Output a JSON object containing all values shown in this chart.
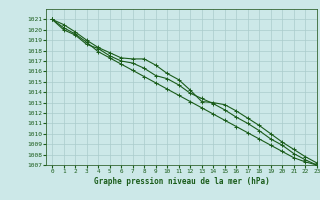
{
  "xlabel": "Graphe pression niveau de la mer (hPa)",
  "background_color": "#cce8e8",
  "grid_color": "#aacccc",
  "line_color": "#1a5c1a",
  "spine_color": "#336633",
  "xlim": [
    -0.5,
    23
  ],
  "ylim": [
    1007,
    1022
  ],
  "yticks": [
    1007,
    1008,
    1009,
    1010,
    1011,
    1012,
    1013,
    1014,
    1015,
    1016,
    1017,
    1018,
    1019,
    1020,
    1021
  ],
  "xticks": [
    0,
    1,
    2,
    3,
    4,
    5,
    6,
    7,
    8,
    9,
    10,
    11,
    12,
    13,
    14,
    15,
    16,
    17,
    18,
    19,
    20,
    21,
    22,
    23
  ],
  "series1": [
    1021.0,
    1020.5,
    1019.8,
    1019.0,
    1018.3,
    1017.8,
    1017.3,
    1017.2,
    1017.2,
    1016.6,
    1015.8,
    1015.2,
    1014.2,
    1013.1,
    1013.0,
    1012.8,
    1012.2,
    1011.5,
    1010.8,
    1010.0,
    1009.2,
    1008.5,
    1007.8,
    1007.2
  ],
  "series2": [
    1021.0,
    1020.0,
    1019.5,
    1018.6,
    1018.2,
    1017.5,
    1017.0,
    1016.8,
    1016.3,
    1015.6,
    1015.3,
    1014.7,
    1013.9,
    1013.4,
    1012.9,
    1012.3,
    1011.6,
    1011.0,
    1010.3,
    1009.5,
    1008.9,
    1008.1,
    1007.5,
    1007.0
  ],
  "series3": [
    1021.0,
    1020.2,
    1019.6,
    1018.8,
    1017.9,
    1017.3,
    1016.7,
    1016.1,
    1015.5,
    1014.9,
    1014.3,
    1013.7,
    1013.1,
    1012.5,
    1011.9,
    1011.3,
    1010.7,
    1010.1,
    1009.5,
    1008.9,
    1008.3,
    1007.7,
    1007.3,
    1007.0
  ]
}
